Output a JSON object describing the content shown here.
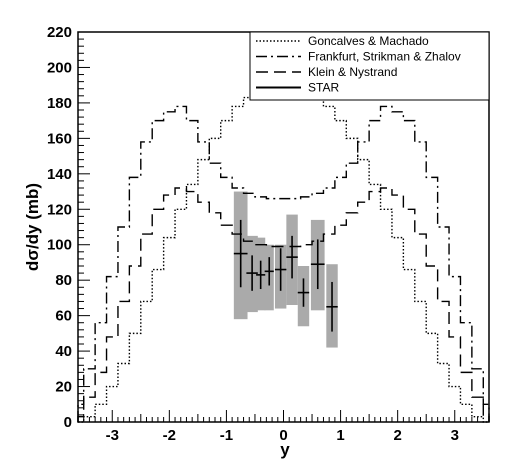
{
  "chart_data": {
    "type": "line",
    "title": "",
    "xlabel": "y",
    "ylabel": "dσ/dy (mb)",
    "xlim": [
      -3.6,
      3.6
    ],
    "ylim": [
      0,
      220
    ],
    "xticks": [
      -3,
      -2,
      -1,
      0,
      1,
      2,
      3
    ],
    "yticks": [
      0,
      20,
      40,
      60,
      80,
      100,
      120,
      140,
      160,
      180,
      200,
      220
    ],
    "grid": false,
    "legend_position": "top-right",
    "series": [
      {
        "name": "Goncalves & Machado",
        "style": "dotted",
        "x": [
          -3.6,
          -3.4,
          -3.2,
          -3.0,
          -2.8,
          -2.6,
          -2.4,
          -2.2,
          -2.0,
          -1.8,
          -1.6,
          -1.4,
          -1.2,
          -1.0,
          -0.8,
          -0.6,
          -0.4,
          -0.2,
          0.0,
          0.2,
          0.4,
          0.6,
          0.8,
          1.0,
          1.2,
          1.4,
          1.6,
          1.8,
          2.0,
          2.2,
          2.4,
          2.6,
          2.8,
          3.0,
          3.2,
          3.4,
          3.6
        ],
        "values": [
          0,
          3,
          10,
          20,
          33,
          50,
          68,
          86,
          104,
          120,
          134,
          148,
          160,
          170,
          178,
          183,
          187,
          189,
          190,
          189,
          187,
          183,
          178,
          170,
          160,
          148,
          134,
          120,
          104,
          86,
          68,
          50,
          33,
          20,
          10,
          3,
          0
        ]
      },
      {
        "name": "Frankfurt, Strikman & Zhalov",
        "style": "dashdot",
        "x": [
          -3.6,
          -3.4,
          -3.2,
          -3.0,
          -2.8,
          -2.6,
          -2.4,
          -2.2,
          -2.0,
          -1.8,
          -1.6,
          -1.4,
          -1.2,
          -1.0,
          -0.8,
          -0.6,
          -0.4,
          -0.2,
          0.0,
          0.2,
          0.4,
          0.6,
          0.8,
          1.0,
          1.2,
          1.4,
          1.6,
          1.8,
          2.0,
          2.2,
          2.4,
          2.6,
          2.8,
          3.0,
          3.2,
          3.4,
          3.6
        ],
        "values": [
          10,
          30,
          56,
          82,
          110,
          138,
          158,
          170,
          175,
          178,
          170,
          158,
          146,
          138,
          132,
          129,
          127,
          126,
          126,
          126,
          127,
          129,
          132,
          138,
          146,
          158,
          170,
          178,
          175,
          170,
          158,
          138,
          110,
          82,
          56,
          30,
          10
        ]
      },
      {
        "name": "Klein & Nystrand",
        "style": "dashed",
        "x": [
          -3.6,
          -3.4,
          -3.2,
          -3.0,
          -2.8,
          -2.6,
          -2.4,
          -2.2,
          -2.0,
          -1.8,
          -1.6,
          -1.4,
          -1.2,
          -1.0,
          -0.8,
          -0.6,
          -0.4,
          -0.2,
          0.0,
          0.2,
          0.4,
          0.6,
          0.8,
          1.0,
          1.2,
          1.4,
          1.6,
          1.8,
          2.0,
          2.2,
          2.4,
          2.6,
          2.8,
          3.0,
          3.2,
          3.4,
          3.6
        ],
        "values": [
          3,
          14,
          28,
          48,
          68,
          88,
          106,
          120,
          128,
          132,
          130,
          124,
          118,
          111,
          106,
          102,
          100,
          99,
          99,
          99,
          100,
          102,
          106,
          111,
          118,
          124,
          130,
          132,
          128,
          120,
          106,
          88,
          68,
          48,
          28,
          14,
          3
        ]
      }
    ],
    "star_data": {
      "name": "STAR",
      "x": [
        -0.75,
        -0.55,
        -0.4,
        -0.25,
        -0.05,
        0.15,
        0.35,
        0.6,
        0.85
      ],
      "y": [
        95,
        84,
        83,
        85,
        86,
        93,
        73,
        89,
        65
      ],
      "x_err": [
        0.12,
        0.1,
        0.08,
        0.08,
        0.1,
        0.1,
        0.1,
        0.12,
        0.1
      ],
      "y_err": [
        19,
        10,
        8,
        8,
        12,
        12,
        8,
        14,
        14
      ],
      "sys_low": [
        58,
        62,
        63,
        63,
        64,
        66,
        54,
        63,
        42
      ],
      "sys_high": [
        130,
        105,
        104,
        100,
        100,
        117,
        88,
        114,
        89
      ]
    }
  }
}
